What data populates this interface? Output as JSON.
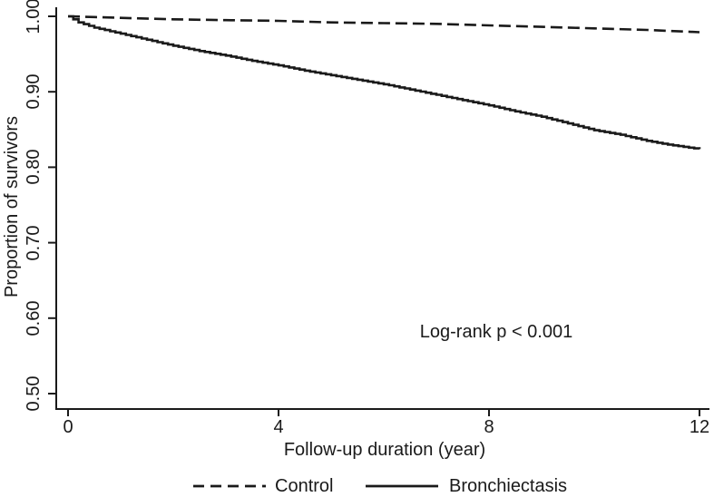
{
  "figure": {
    "kind": "kaplan-meier-survival-plot",
    "background": "#ffffff",
    "line_color": "#1a1a1a"
  },
  "chart_data": {
    "type": "line",
    "title": "",
    "xlabel": "Follow-up duration (year)",
    "ylabel": "Proportion of survivors",
    "annotation": "Log-rank p < 0.001",
    "xlim": [
      0,
      12
    ],
    "ylim": [
      0.5,
      1.0
    ],
    "grid": false,
    "legend_position": "bottom-center",
    "xticks": [
      0,
      4,
      8,
      12
    ],
    "xtick_labels": [
      "0",
      "4",
      "8",
      "12"
    ],
    "yticks": [
      0.5,
      0.6,
      0.7,
      0.8,
      0.9,
      1.0
    ],
    "ytick_labels": [
      "0.50",
      "0.60",
      "0.70",
      "0.80",
      "0.90",
      "1.00"
    ],
    "series": [
      {
        "name": "Control",
        "style": "dashed",
        "x": [
          0,
          0.5,
          1,
          2,
          3,
          4,
          5,
          6,
          7,
          8,
          9,
          10,
          11,
          12
        ],
        "y": [
          1.0,
          0.999,
          0.998,
          0.996,
          0.995,
          0.994,
          0.992,
          0.991,
          0.99,
          0.988,
          0.986,
          0.984,
          0.982,
          0.979
        ]
      },
      {
        "name": "Bronchiectasis",
        "style": "solid",
        "x": [
          0,
          0.2,
          0.5,
          1,
          1.5,
          2,
          2.5,
          3,
          3.5,
          4,
          4.5,
          5,
          5.5,
          6,
          6.5,
          7,
          7.5,
          8,
          8.5,
          9,
          9.5,
          10,
          10.5,
          11,
          11.4,
          11.7,
          12
        ],
        "y": [
          1.0,
          0.992,
          0.985,
          0.977,
          0.969,
          0.961,
          0.954,
          0.948,
          0.941,
          0.935,
          0.928,
          0.922,
          0.916,
          0.91,
          0.903,
          0.896,
          0.889,
          0.882,
          0.874,
          0.867,
          0.858,
          0.849,
          0.843,
          0.835,
          0.83,
          0.827,
          0.824
        ]
      }
    ]
  }
}
